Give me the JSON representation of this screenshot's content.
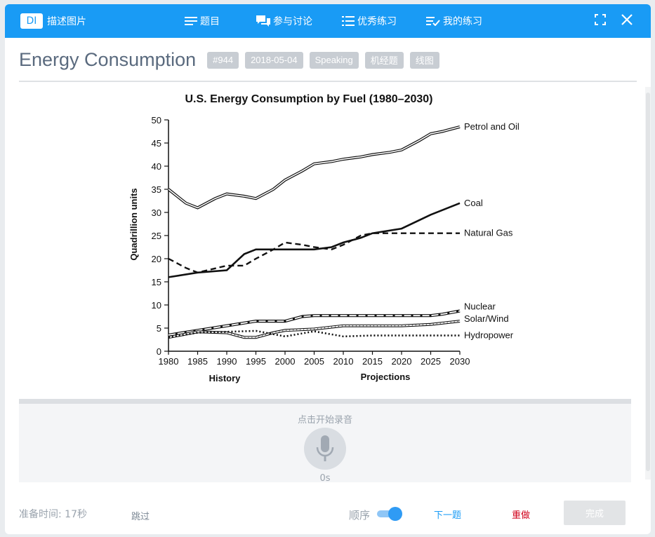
{
  "app": {
    "badge": "DI",
    "name": "描述图片"
  },
  "nav": {
    "questions": "题目",
    "discuss": "参与讨论",
    "excellent": "优秀练习",
    "mine": "我的练习"
  },
  "question": {
    "title": "Energy Consumption",
    "tags": [
      "#944",
      "2018-05-04",
      "Speaking",
      "机经题",
      "线图"
    ]
  },
  "recorder": {
    "hint": "点击开始录音",
    "time": "0s"
  },
  "footer": {
    "prep_label": "准备时间:",
    "prep_value": "17秒",
    "skip": "跳过",
    "order": "顺序",
    "order_on": true,
    "next": "下一题",
    "redo": "重做",
    "done": "完成"
  },
  "colors": {
    "accent": "#199bf5",
    "redo": "#d0021b",
    "tag_bg": "#c8cdd3"
  },
  "chart_data": {
    "type": "line",
    "title": "U.S. Energy Consumption by Fuel (1980–2030)",
    "ylabel": "Quadrillion units",
    "section_labels": [
      "History",
      "Projections"
    ],
    "ylim": [
      0,
      50
    ],
    "xlim": [
      1980,
      2030
    ],
    "xticks": [
      1980,
      1985,
      1990,
      1995,
      2000,
      2005,
      2010,
      2015,
      2020,
      2025,
      2030
    ],
    "yticks": [
      0,
      5,
      10,
      15,
      20,
      25,
      30,
      35,
      40,
      45,
      50
    ],
    "grid": false,
    "series": [
      {
        "name": "Petrol and Oil",
        "style": "double",
        "x": [
          1980,
          1983,
          1985,
          1988,
          1990,
          1993,
          1995,
          1998,
          2000,
          2003,
          2005,
          2008,
          2010,
          2013,
          2015,
          2018,
          2020,
          2023,
          2025,
          2027,
          2030
        ],
        "y": [
          35,
          32,
          31,
          33,
          34,
          33.5,
          33,
          35,
          37,
          39,
          40.5,
          41,
          41.5,
          42,
          42.5,
          43,
          43.5,
          45.5,
          47,
          47.5,
          48.5
        ]
      },
      {
        "name": "Coal",
        "style": "solid",
        "x": [
          1980,
          1985,
          1990,
          1993,
          1995,
          2000,
          2005,
          2008,
          2010,
          2013,
          2015,
          2020,
          2025,
          2030
        ],
        "y": [
          16,
          17,
          17.5,
          21,
          22,
          22,
          22,
          22.5,
          23.5,
          24.5,
          25.5,
          26.5,
          29.5,
          32
        ]
      },
      {
        "name": "Natural Gas",
        "style": "dashed",
        "x": [
          1980,
          1983,
          1985,
          1990,
          1993,
          1995,
          1998,
          2000,
          2003,
          2005,
          2008,
          2010,
          2013,
          2015,
          2020,
          2025,
          2030
        ],
        "y": [
          20,
          18,
          17,
          18.5,
          18.5,
          20,
          22,
          23.5,
          23,
          22.5,
          22,
          23,
          25,
          25.5,
          25.5,
          25.5,
          25.5
        ]
      },
      {
        "name": "Nuclear",
        "style": "double-dash",
        "x": [
          1980,
          1985,
          1990,
          1995,
          2000,
          2003,
          2005,
          2010,
          2015,
          2020,
          2025,
          2027,
          2030
        ],
        "y": [
          3.5,
          4.5,
          5.5,
          6.5,
          6.5,
          7.5,
          7.7,
          7.7,
          7.7,
          7.7,
          7.7,
          8,
          8.7
        ]
      },
      {
        "name": "Solar/Wind",
        "style": "double-hatch",
        "x": [
          1980,
          1985,
          1990,
          1993,
          1995,
          1998,
          2000,
          2005,
          2010,
          2015,
          2020,
          2025,
          2030
        ],
        "y": [
          3,
          4.2,
          4,
          3,
          3,
          4,
          4.5,
          4.8,
          5.5,
          5.5,
          5.5,
          5.8,
          6.5
        ]
      },
      {
        "name": "Hydropower",
        "style": "dotted",
        "x": [
          1980,
          1985,
          1990,
          1995,
          2000,
          2005,
          2010,
          2015,
          2020,
          2025,
          2030
        ],
        "y": [
          3,
          4,
          4.2,
          4.4,
          3.2,
          4.3,
          3.2,
          3.4,
          3.4,
          3.4,
          3.4
        ]
      }
    ]
  }
}
